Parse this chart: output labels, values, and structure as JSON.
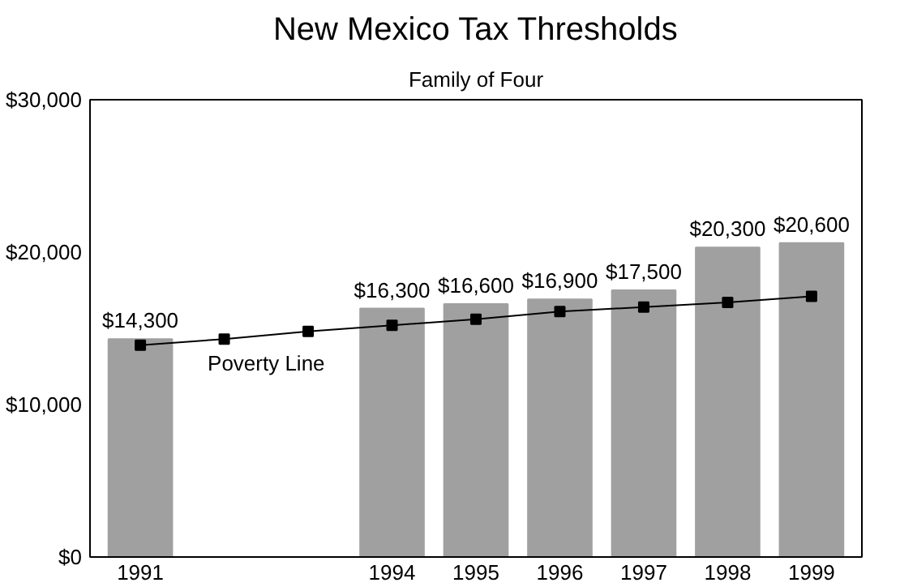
{
  "chart_data": {
    "type": "bar",
    "title": "New Mexico Tax Thresholds",
    "subtitle": "Family of Four",
    "categories": [
      "1991",
      null,
      null,
      "1994",
      "1995",
      "1996",
      "1997",
      "1998",
      "1999"
    ],
    "series": [
      {
        "color": "#a0a0a0",
        "values": [
          14300,
          null,
          null,
          16300,
          16600,
          16900,
          17500,
          20300,
          20600
        ],
        "value_labels": [
          "$14,300",
          null,
          null,
          "$16,300",
          "$16,600",
          "$16,900",
          "$17,500",
          "$20,300",
          "$20,600"
        ]
      },
      {
        "type": "line",
        "name": "Poverty Line",
        "color": "#000000",
        "values": [
          13900,
          14300,
          14800,
          15200,
          15600,
          16100,
          16400,
          16700,
          17100
        ],
        "marker": "square",
        "line_style": "solid"
      }
    ],
    "ylim": [
      0,
      30000
    ],
    "yticks": [
      {
        "value": 0,
        "label": "$0"
      },
      {
        "value": 10000,
        "label": "$10,000"
      },
      {
        "value": 20000,
        "label": "$20,000"
      },
      {
        "value": 30000,
        "label": "$30,000"
      }
    ],
    "grid": false
  }
}
